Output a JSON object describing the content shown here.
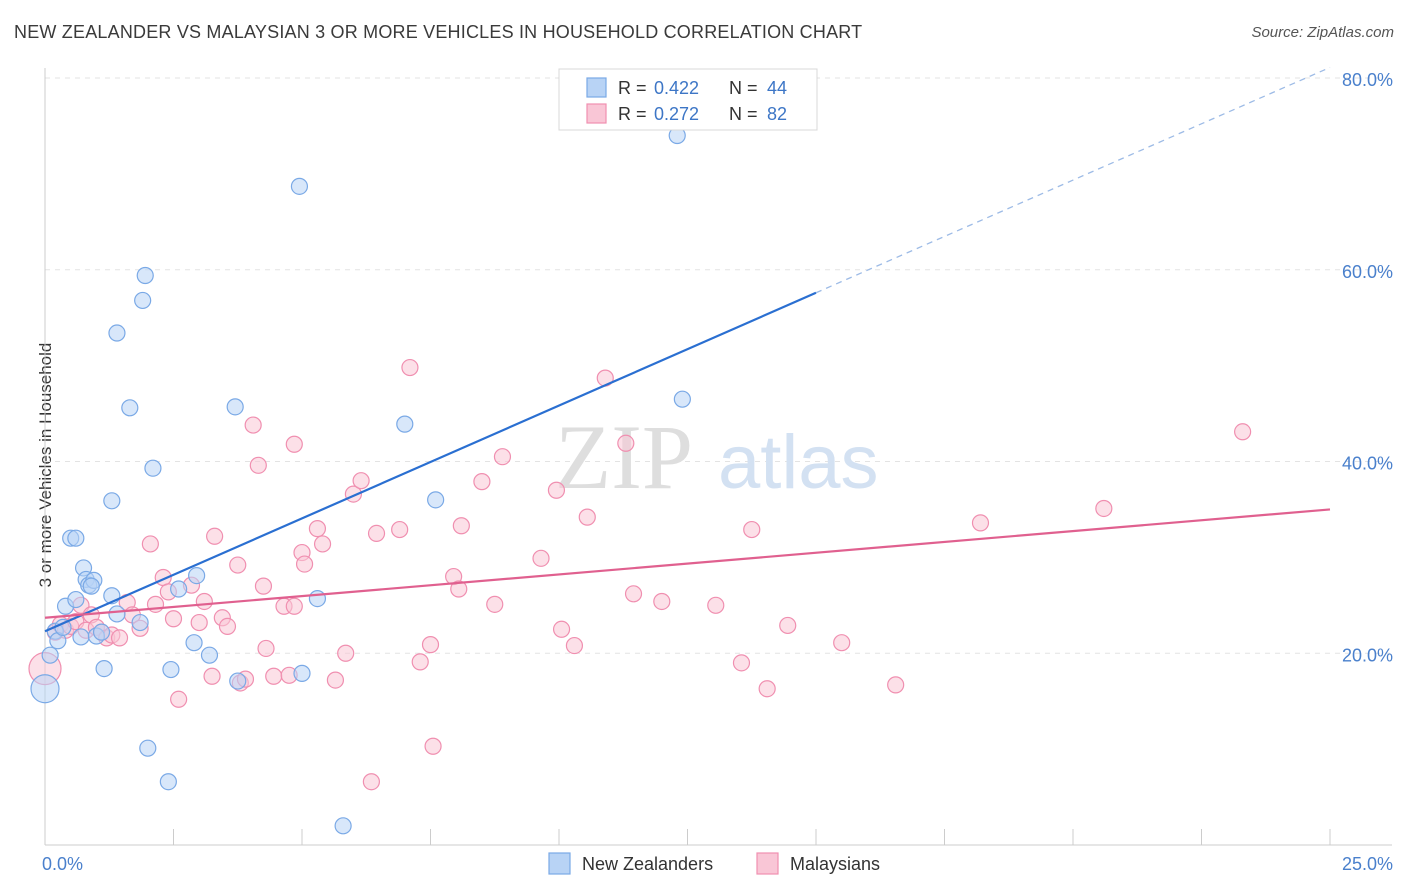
{
  "header": {
    "title": "NEW ZEALANDER VS MALAYSIAN 3 OR MORE VEHICLES IN HOUSEHOLD CORRELATION CHART",
    "source": "Source: ZipAtlas.com"
  },
  "watermark": {
    "zip": "ZIP",
    "atlas": "atlas"
  },
  "legend_top": [
    {
      "r_label": "R =",
      "r_value": "0.422",
      "n_label": "N =",
      "n_value": "44",
      "color": "#7aa9e6",
      "fill": "#b8d3f5"
    },
    {
      "r_label": "R =",
      "r_value": "0.272",
      "n_label": "N =",
      "n_value": "82",
      "color": "#f08fb0",
      "fill": "#f9c6d6"
    }
  ],
  "legend_bottom": [
    {
      "label": "New Zealanders",
      "color": "#7aa9e6",
      "fill": "#b8d3f5"
    },
    {
      "label": "Malaysians",
      "color": "#f08fb0",
      "fill": "#f9c6d6"
    }
  ],
  "chart_data": {
    "type": "scatter",
    "title": "NEW ZEALANDER VS MALAYSIAN 3 OR MORE VEHICLES IN HOUSEHOLD CORRELATION CHART",
    "xlabel": "",
    "ylabel": "3 or more Vehicles in Household",
    "xlim": [
      0,
      25
    ],
    "ylim": [
      0,
      80
    ],
    "x_tick_labels": [
      {
        "value": 0,
        "label": "0.0%"
      },
      {
        "value": 25,
        "label": "25.0%"
      }
    ],
    "y_tick_labels": [
      {
        "value": 20,
        "label": "20.0%"
      },
      {
        "value": 40,
        "label": "40.0%"
      },
      {
        "value": 60,
        "label": "60.0%"
      },
      {
        "value": 80,
        "label": "80.0%"
      }
    ],
    "grid": "horizontal-dashed",
    "legend_position": "top-center",
    "series": [
      {
        "name": "New Zealanders",
        "color": "#7aa9e6",
        "fill": "#b8d3f5",
        "line_color": "#2a6fd1",
        "R": 0.422,
        "N": 44,
        "trend": {
          "x0": 0,
          "y0": 22.3,
          "x1": 15,
          "y1": 57.6,
          "x_dash_end": 25,
          "y_dash_end": 81.1
        },
        "points": [
          [
            0.0,
            16.3,
            14
          ],
          [
            0.1,
            19.8,
            8
          ],
          [
            0.2,
            22.3,
            8
          ],
          [
            0.25,
            21.3,
            8
          ],
          [
            0.35,
            22.7,
            8
          ],
          [
            0.4,
            24.9,
            8
          ],
          [
            0.5,
            32.0,
            8
          ],
          [
            0.6,
            25.6,
            8
          ],
          [
            0.6,
            32.0,
            8
          ],
          [
            0.7,
            21.7,
            8
          ],
          [
            0.75,
            28.9,
            8
          ],
          [
            0.8,
            27.7,
            8
          ],
          [
            0.85,
            27.1,
            8
          ],
          [
            0.95,
            27.6,
            8
          ],
          [
            1.0,
            21.8,
            8
          ],
          [
            1.1,
            22.2,
            8
          ],
          [
            1.15,
            18.4,
            8
          ],
          [
            1.3,
            26.0,
            8
          ],
          [
            1.3,
            35.9,
            8
          ],
          [
            1.4,
            24.1,
            8
          ],
          [
            1.4,
            53.4,
            8
          ],
          [
            1.65,
            45.6,
            8
          ],
          [
            1.85,
            23.2,
            8
          ],
          [
            1.9,
            56.8,
            8
          ],
          [
            1.95,
            59.4,
            8
          ],
          [
            2.0,
            10.1,
            8
          ],
          [
            2.1,
            39.3,
            8
          ],
          [
            2.4,
            6.6,
            8
          ],
          [
            2.45,
            18.3,
            8
          ],
          [
            2.6,
            26.7,
            8
          ],
          [
            2.9,
            21.1,
            8
          ],
          [
            2.95,
            28.1,
            8
          ],
          [
            3.2,
            19.8,
            8
          ],
          [
            3.75,
            17.1,
            8
          ],
          [
            3.7,
            45.7,
            8
          ],
          [
            4.95,
            68.7,
            8
          ],
          [
            5.0,
            17.9,
            8
          ],
          [
            5.3,
            25.7,
            8
          ],
          [
            5.8,
            2.0,
            8
          ],
          [
            7.0,
            43.9,
            8
          ],
          [
            7.6,
            36.0,
            8
          ],
          [
            12.3,
            74.0,
            8
          ],
          [
            12.4,
            46.5,
            8
          ],
          [
            0.9,
            27.0,
            8
          ]
        ]
      },
      {
        "name": "Malaysians",
        "color": "#f08fb0",
        "fill": "#f9c6d6",
        "line_color": "#e0608f",
        "R": 0.272,
        "N": 82,
        "trend": {
          "x0": 0,
          "y0": 23.7,
          "x1": 25,
          "y1": 35.0
        },
        "points": [
          [
            0.0,
            18.4,
            16
          ],
          [
            0.2,
            22.2,
            8
          ],
          [
            0.3,
            23.0,
            8
          ],
          [
            0.4,
            22.4,
            8
          ],
          [
            0.5,
            22.8,
            8
          ],
          [
            0.6,
            23.3,
            8
          ],
          [
            0.7,
            25.0,
            8
          ],
          [
            0.8,
            22.4,
            8
          ],
          [
            0.9,
            24.0,
            8
          ],
          [
            1.0,
            22.7,
            8
          ],
          [
            1.1,
            22.2,
            8
          ],
          [
            1.2,
            21.6,
            8
          ],
          [
            1.3,
            21.9,
            8
          ],
          [
            1.45,
            21.6,
            8
          ],
          [
            1.6,
            25.3,
            8
          ],
          [
            1.7,
            24.0,
            8
          ],
          [
            1.85,
            22.6,
            8
          ],
          [
            2.05,
            31.4,
            8
          ],
          [
            2.15,
            25.1,
            8
          ],
          [
            2.3,
            27.9,
            8
          ],
          [
            2.4,
            26.4,
            8
          ],
          [
            2.5,
            23.6,
            8
          ],
          [
            2.6,
            15.2,
            8
          ],
          [
            2.85,
            27.1,
            8
          ],
          [
            3.0,
            23.2,
            8
          ],
          [
            3.1,
            25.4,
            8
          ],
          [
            3.25,
            17.6,
            8
          ],
          [
            3.3,
            32.2,
            8
          ],
          [
            3.45,
            23.7,
            8
          ],
          [
            3.55,
            22.8,
            8
          ],
          [
            3.75,
            29.2,
            8
          ],
          [
            3.8,
            16.9,
            8
          ],
          [
            3.9,
            17.3,
            8
          ],
          [
            4.05,
            43.8,
            8
          ],
          [
            4.15,
            39.6,
            8
          ],
          [
            4.25,
            27.0,
            8
          ],
          [
            4.3,
            20.5,
            8
          ],
          [
            4.45,
            17.6,
            8
          ],
          [
            4.65,
            24.9,
            8
          ],
          [
            4.75,
            17.7,
            8
          ],
          [
            4.85,
            24.9,
            8
          ],
          [
            4.85,
            41.8,
            8
          ],
          [
            5.0,
            30.5,
            8
          ],
          [
            5.05,
            29.3,
            8
          ],
          [
            5.3,
            33.0,
            8
          ],
          [
            5.4,
            31.4,
            8
          ],
          [
            5.65,
            17.2,
            8
          ],
          [
            5.85,
            20.0,
            8
          ],
          [
            6.0,
            36.6,
            8
          ],
          [
            6.15,
            38.0,
            8
          ],
          [
            6.35,
            6.6,
            8
          ],
          [
            6.45,
            32.5,
            8
          ],
          [
            6.9,
            32.9,
            8
          ],
          [
            7.1,
            49.8,
            8
          ],
          [
            7.3,
            19.1,
            8
          ],
          [
            7.5,
            20.9,
            8
          ],
          [
            7.55,
            10.3,
            8
          ],
          [
            7.95,
            28.0,
            8
          ],
          [
            8.05,
            26.7,
            8
          ],
          [
            8.1,
            33.3,
            8
          ],
          [
            8.5,
            37.9,
            8
          ],
          [
            8.75,
            25.1,
            8
          ],
          [
            8.9,
            40.5,
            8
          ],
          [
            9.65,
            29.9,
            8
          ],
          [
            9.95,
            37.0,
            8
          ],
          [
            10.05,
            22.5,
            8
          ],
          [
            10.3,
            20.8,
            8
          ],
          [
            10.55,
            34.2,
            8
          ],
          [
            10.9,
            48.7,
            8
          ],
          [
            11.3,
            41.9,
            8
          ],
          [
            11.45,
            26.2,
            8
          ],
          [
            13.05,
            25.0,
            8
          ],
          [
            13.55,
            19.0,
            8
          ],
          [
            13.75,
            32.9,
            8
          ],
          [
            14.05,
            16.3,
            8
          ],
          [
            14.45,
            22.9,
            8
          ],
          [
            15.5,
            21.1,
            8
          ],
          [
            16.55,
            16.7,
            8
          ],
          [
            18.2,
            33.6,
            8
          ],
          [
            20.6,
            35.1,
            8
          ],
          [
            23.3,
            43.1,
            8
          ],
          [
            12.0,
            25.4,
            8
          ]
        ]
      }
    ]
  }
}
